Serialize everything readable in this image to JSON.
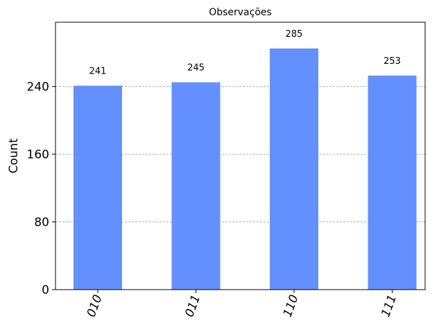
{
  "chart_data": {
    "type": "bar",
    "title": "Observações",
    "xlabel": "",
    "ylabel": "Count",
    "categories": [
      "010",
      "011",
      "110",
      "111"
    ],
    "values": [
      241,
      245,
      285,
      253
    ],
    "data_labels": [
      "241",
      "245",
      "285",
      "253"
    ],
    "ylim": [
      0,
      316
    ],
    "yticks": [
      0,
      80,
      160,
      240
    ],
    "ytick_labels": [
      "0",
      "80",
      "160",
      "240"
    ],
    "grid": "horizontal-dashed",
    "xtick_rotation": "70",
    "bar_color": "#648fff",
    "grid_color": "#b0b0b0"
  }
}
